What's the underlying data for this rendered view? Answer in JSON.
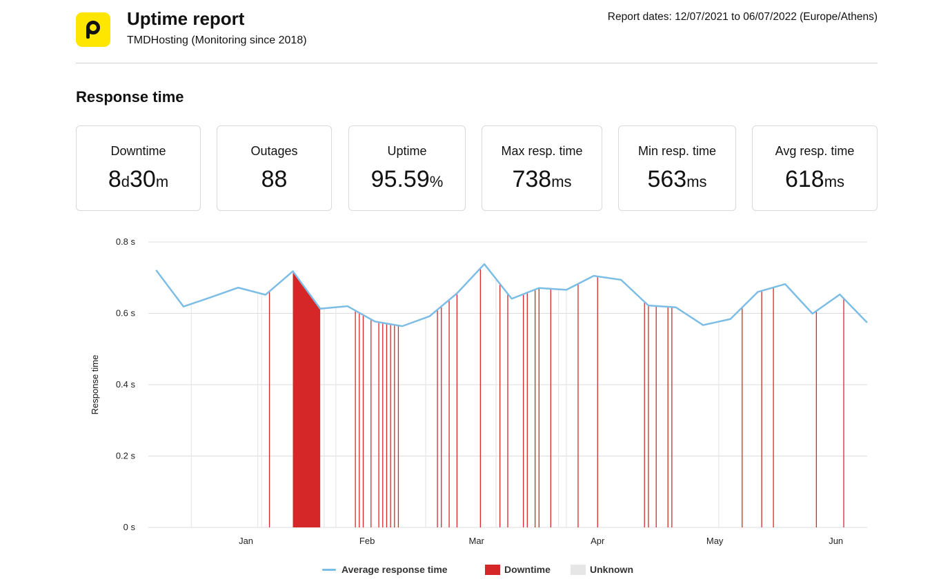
{
  "header": {
    "title": "Uptime report",
    "subtitle": "TMDHosting (Monitoring since 2018)",
    "report_dates": "Report dates: 12/07/2021 to 06/07/2022 (Europe/Athens)"
  },
  "section_title": "Response time",
  "stats": [
    {
      "label": "Downtime",
      "parts": [
        [
          "8",
          false
        ],
        [
          "d",
          true
        ],
        [
          "30",
          false
        ],
        [
          "m",
          true
        ]
      ]
    },
    {
      "label": "Outages",
      "parts": [
        [
          "88",
          false
        ]
      ]
    },
    {
      "label": "Uptime",
      "parts": [
        [
          "95.59",
          false
        ],
        [
          "%",
          true
        ]
      ]
    },
    {
      "label": "Max resp. time",
      "parts": [
        [
          "738",
          false
        ],
        [
          "ms",
          true
        ]
      ]
    },
    {
      "label": "Min resp. time",
      "parts": [
        [
          "563",
          false
        ],
        [
          "ms",
          true
        ]
      ]
    },
    {
      "label": "Avg resp. time",
      "parts": [
        [
          "618",
          false
        ],
        [
          "ms",
          true
        ]
      ]
    }
  ],
  "colors": {
    "line": "#7cbde6",
    "downtime": "#d62728",
    "unknown": "#e6e6e6",
    "grid": "#dcdcdc"
  },
  "chart_data": {
    "type": "line",
    "ylabel": "Response time",
    "ylim": [
      0,
      0.8
    ],
    "yticks": [
      0,
      0.2,
      0.4,
      0.6,
      0.8
    ],
    "ytick_labels": [
      "0 s",
      "0.2 s",
      "0.4 s",
      "0.6 s",
      "0.8 s"
    ],
    "xlim": [
      "2021-12-07",
      "2022-06-09"
    ],
    "xticks": [
      {
        "label": "Jan",
        "date": "2022-01-01"
      },
      {
        "label": "Feb",
        "date": "2022-02-01"
      },
      {
        "label": "Mar",
        "date": "2022-03-01"
      },
      {
        "label": "Apr",
        "date": "2022-04-01"
      },
      {
        "label": "May",
        "date": "2022-05-01"
      },
      {
        "label": "Jun",
        "date": "2022-06-01"
      }
    ],
    "grid": true,
    "legend": "bottom",
    "series": [
      {
        "name": "Average response time",
        "points": [
          [
            "2021-12-09",
            0.721
          ],
          [
            "2021-12-16",
            0.619
          ],
          [
            "2021-12-23",
            0.645
          ],
          [
            "2021-12-30",
            0.672
          ],
          [
            "2022-01-06",
            0.652
          ],
          [
            "2022-01-13",
            0.718
          ],
          [
            "2022-01-20",
            0.613
          ],
          [
            "2022-01-27",
            0.62
          ],
          [
            "2022-02-03",
            0.577
          ],
          [
            "2022-02-10",
            0.564
          ],
          [
            "2022-02-17",
            0.592
          ],
          [
            "2022-02-24",
            0.656
          ],
          [
            "2022-03-03",
            0.738
          ],
          [
            "2022-03-10",
            0.641
          ],
          [
            "2022-03-17",
            0.671
          ],
          [
            "2022-03-24",
            0.666
          ],
          [
            "2022-03-31",
            0.705
          ],
          [
            "2022-04-07",
            0.694
          ],
          [
            "2022-04-14",
            0.622
          ],
          [
            "2022-04-21",
            0.617
          ],
          [
            "2022-04-28",
            0.567
          ],
          [
            "2022-05-05",
            0.584
          ],
          [
            "2022-05-12",
            0.66
          ],
          [
            "2022-05-19",
            0.682
          ],
          [
            "2022-05-26",
            0.599
          ],
          [
            "2022-06-02",
            0.653
          ],
          [
            "2022-06-09",
            0.574
          ]
        ]
      }
    ],
    "downtime_periods": [
      [
        "2022-01-13",
        "2022-01-20"
      ]
    ],
    "downtime_events": [
      "2022-01-07",
      "2022-01-29",
      "2022-01-30",
      "2022-01-31",
      "2022-02-02",
      "2022-02-04",
      "2022-02-05",
      "2022-02-06",
      "2022-02-07",
      "2022-02-08",
      "2022-02-09",
      "2022-02-19",
      "2022-02-20",
      "2022-02-22",
      "2022-02-24",
      "2022-03-02",
      "2022-03-07",
      "2022-03-09",
      "2022-03-13",
      "2022-03-14",
      "2022-03-16",
      "2022-03-17",
      "2022-03-20",
      "2022-03-27",
      "2022-04-01",
      "2022-04-13",
      "2022-04-14",
      "2022-04-16",
      "2022-04-19",
      "2022-04-20",
      "2022-05-08",
      "2022-05-13",
      "2022-05-16",
      "2022-05-27",
      "2022-06-03"
    ],
    "unknown_events": [
      "2021-12-18",
      "2022-01-04",
      "2022-01-05",
      "2022-01-19",
      "2022-01-21",
      "2022-01-24",
      "2022-02-16",
      "2022-03-06",
      "2022-03-22",
      "2022-03-24",
      "2022-05-02"
    ]
  },
  "legend": [
    {
      "label": "Average response time",
      "kind": "line"
    },
    {
      "label": "Downtime",
      "kind": "downtime"
    },
    {
      "label": "Unknown",
      "kind": "unknown"
    }
  ]
}
